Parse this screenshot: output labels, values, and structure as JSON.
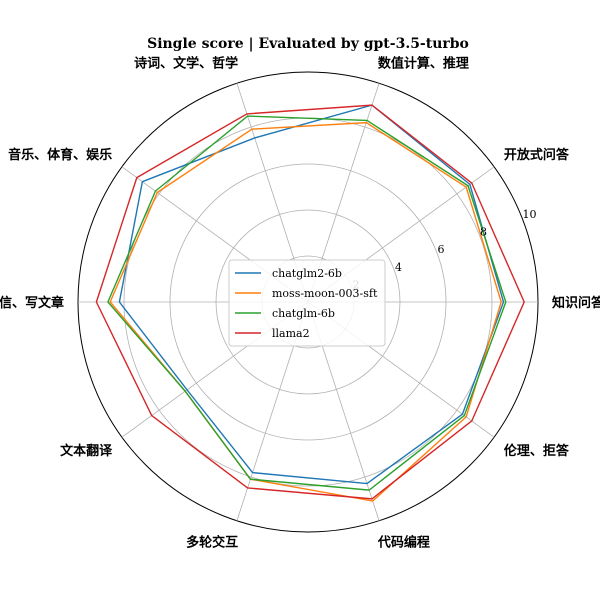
{
  "chart_data": {
    "type": "radar",
    "title": "Single score | Evaluated by gpt-3.5-turbo",
    "categories": [
      "知识问答",
      "开放式问答",
      "数值计算、推理",
      "诗词、文学、哲学",
      "音乐、体育、娱乐",
      "写信、写文章",
      "文本翻译",
      "多轮交互",
      "代码编程",
      "伦理、拒答"
    ],
    "r_ticks": [
      2,
      4,
      6,
      8,
      10
    ],
    "r_tick_labels": [
      "2",
      "4",
      "6",
      "8",
      "10"
    ],
    "r_range": [
      0,
      10
    ],
    "grid": true,
    "legend_position": "center",
    "series": [
      {
        "name": "chatglm2-6b",
        "color": "#1f77b4",
        "values": [
          8.5,
          8.7,
          9.0,
          7.5,
          8.9,
          8.2,
          6.5,
          7.8,
          8.3,
          8.3
        ]
      },
      {
        "name": "moss-moon-003-sft",
        "color": "#ff7f0e",
        "values": [
          8.4,
          8.5,
          8.2,
          7.9,
          8.1,
          8.6,
          6.6,
          8.1,
          9.1,
          8.5
        ]
      },
      {
        "name": "chatglm-6b",
        "color": "#2ca02c",
        "values": [
          8.6,
          8.6,
          8.3,
          8.5,
          8.2,
          8.7,
          6.6,
          8.1,
          8.6,
          8.4
        ]
      },
      {
        "name": "llama2",
        "color": "#d62728",
        "values": [
          9.4,
          8.8,
          9.0,
          8.6,
          9.2,
          9.2,
          8.4,
          8.5,
          9.0,
          8.8
        ]
      }
    ]
  }
}
